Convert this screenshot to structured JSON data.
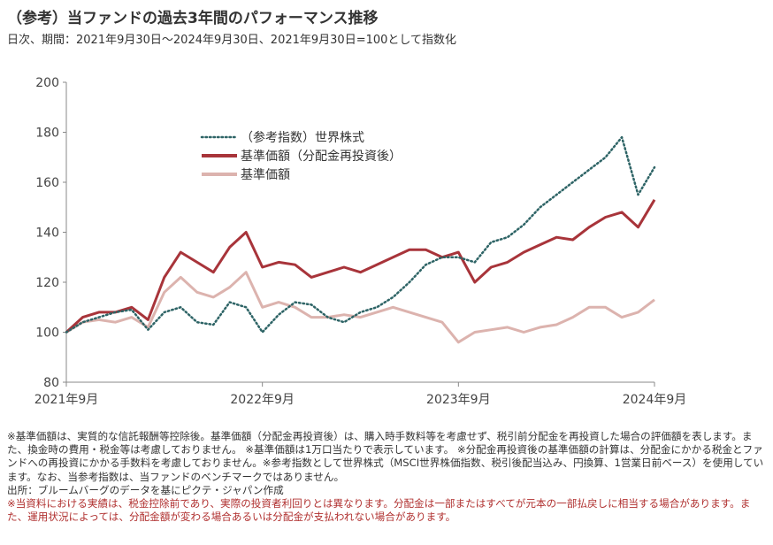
{
  "title": "（参考）当ファンドの過去3年間のパフォーマンス推移",
  "subtitle": "日次、期間：2021年9月30日～2024年9月30日、2021年9月30日=100として指数化",
  "chart_data": {
    "type": "line",
    "ylim": [
      80,
      200
    ],
    "yticks": [
      80,
      100,
      120,
      140,
      160,
      180,
      200
    ],
    "xticks": [
      "2021年9月",
      "2022年9月",
      "2023年9月",
      "2024年9月"
    ],
    "x": [
      "2021-09",
      "2021-10",
      "2021-11",
      "2021-12",
      "2022-01",
      "2022-02",
      "2022-03",
      "2022-04",
      "2022-05",
      "2022-06",
      "2022-07",
      "2022-08",
      "2022-09",
      "2022-10",
      "2022-11",
      "2022-12",
      "2023-01",
      "2023-02",
      "2023-03",
      "2023-04",
      "2023-05",
      "2023-06",
      "2023-07",
      "2023-08",
      "2023-09",
      "2023-10",
      "2023-11",
      "2023-12",
      "2024-01",
      "2024-02",
      "2024-03",
      "2024-04",
      "2024-05",
      "2024-06",
      "2024-07",
      "2024-08",
      "2024-09"
    ],
    "series": [
      {
        "name": "（参考指数）世界株式",
        "color": "#2e6466",
        "style": "dotted",
        "values": [
          100,
          104,
          106,
          108,
          109,
          101,
          108,
          110,
          104,
          103,
          112,
          110,
          100,
          107,
          112,
          111,
          106,
          104,
          108,
          110,
          114,
          120,
          127,
          130,
          130,
          128,
          136,
          138,
          143,
          150,
          155,
          160,
          165,
          170,
          178,
          155,
          166
        ]
      },
      {
        "name": "基準価額（分配金再投資後）",
        "color": "#a8343a",
        "style": "solid",
        "values": [
          100,
          106,
          108,
          108,
          110,
          105,
          122,
          132,
          128,
          124,
          134,
          140,
          126,
          128,
          127,
          122,
          124,
          126,
          124,
          127,
          130,
          133,
          133,
          130,
          132,
          120,
          126,
          128,
          132,
          135,
          138,
          137,
          142,
          146,
          148,
          142,
          153
        ]
      },
      {
        "name": "基準価額",
        "color": "#dcb3ae",
        "style": "solid",
        "values": [
          100,
          104,
          105,
          104,
          106,
          102,
          116,
          122,
          116,
          114,
          118,
          124,
          110,
          112,
          110,
          106,
          106,
          107,
          106,
          108,
          110,
          108,
          106,
          104,
          96,
          100,
          101,
          102,
          100,
          102,
          103,
          106,
          110,
          110,
          106,
          108,
          113
        ]
      }
    ]
  },
  "notes": [
    "※基準価額は、実質的な信託報酬等控除後。基準価額（分配金再投資後）は、購入時手数料等を考慮せず、税引前分配金を再投資した場合の評価額を表します。また、換金時の費用・税金等は考慮しておりません。 ※基準価額は1万口当たりで表示しています。 ※分配金再投資後の基準価額の計算は、分配金にかかる税金とファンドへの再投資にかかる手数料を考慮しておりません。※参考指数として世界株式（MSCI世界株価指数、税引後配当込み、円換算、1営業日前ベース）を使用しています。なお、当参考指数は、当ファンドのベンチマークではありません。",
    "出所：ブルームバーグのデータを基にピクテ・ジャパン作成"
  ],
  "warning": "※当資料における実績は、税金控除前であり、実際の投資者利回りとは異なります。分配金は一部またはすべてが元本の一部払戻しに相当する場合があります。また、運用状況によっては、分配金額が変わる場合あるいは分配金が支払われない場合があります。"
}
